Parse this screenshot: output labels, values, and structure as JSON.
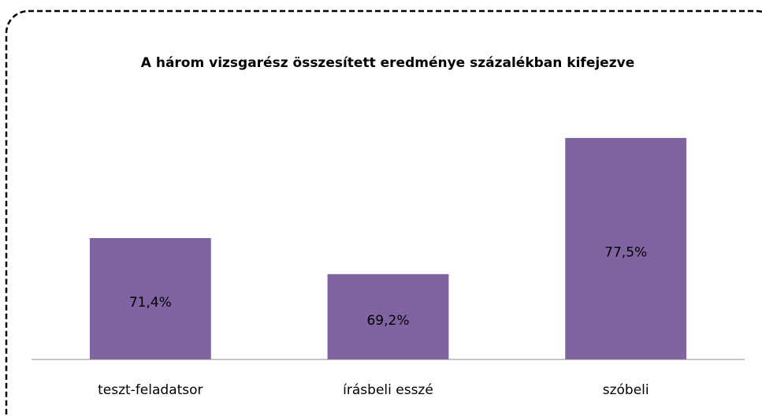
{
  "chart_data": {
    "type": "bar",
    "title": "A három vizsgarész összesített eredménye százalékban kifejezve",
    "categories": [
      "teszt-feladatsor",
      "írásbeli esszé",
      "szóbeli"
    ],
    "values": [
      71.4,
      69.2,
      77.5
    ],
    "value_labels": [
      "71,4%",
      "69,2%",
      "77,5%"
    ],
    "color": "#8064a2",
    "ylim": [
      64,
      80
    ]
  }
}
